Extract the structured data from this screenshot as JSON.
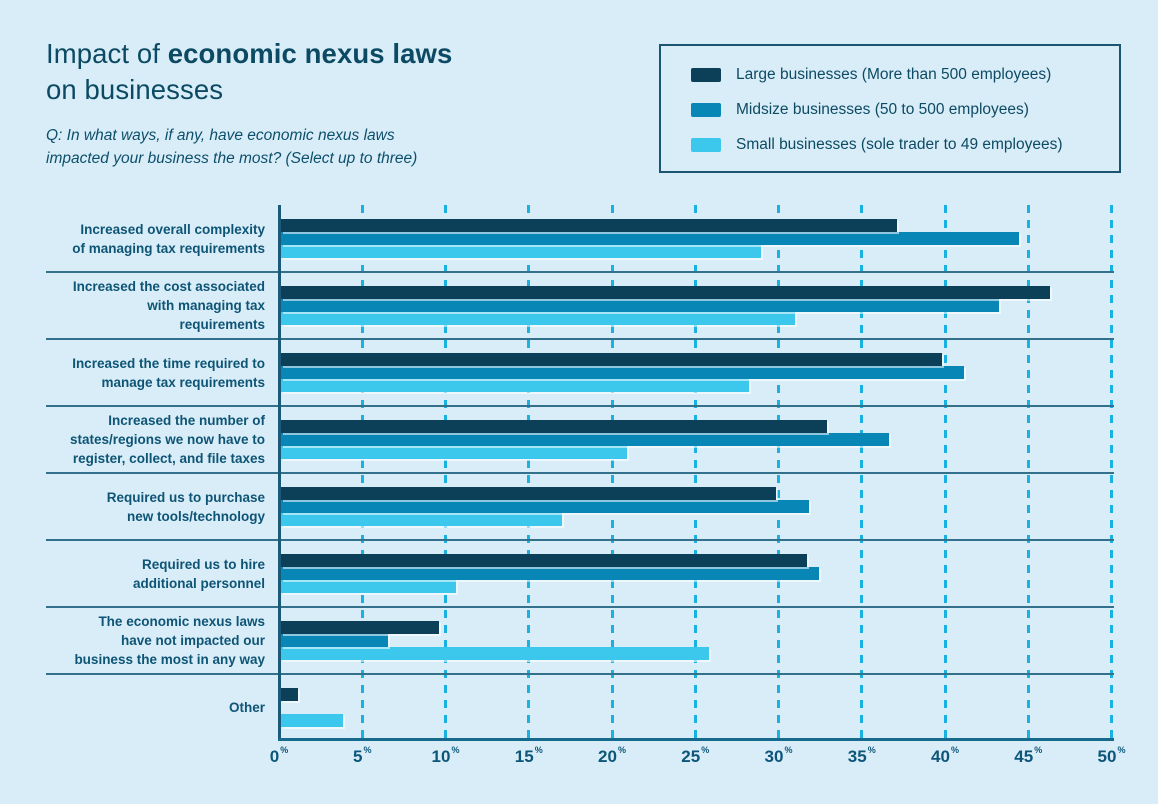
{
  "page": {
    "background": "#d8edf8"
  },
  "header": {
    "title_prefix": "Impact of ",
    "title_bold": "economic nexus laws",
    "title_suffix": " on businesses",
    "subtitle_line1": "Q: In what ways, if any, have economic nexus laws",
    "subtitle_line2": "impacted your business the most? (Select up to three)"
  },
  "legend": {
    "items": [
      {
        "label": "Large businesses (More than 500 employees)",
        "color": "#0c3f58"
      },
      {
        "label": "Midsize businesses (50 to 500 employees)",
        "color": "#0886b6"
      },
      {
        "label": "Small businesses (sole trader to 49 employees)",
        "color": "#3cc8ec"
      }
    ]
  },
  "chart_data": {
    "type": "bar",
    "orientation": "horizontal",
    "title": "Impact of economic nexus laws on businesses",
    "xlabel": "",
    "ylabel": "",
    "xlim": [
      0,
      50
    ],
    "x_tick_step": 5,
    "x_ticks": [
      "0",
      "5",
      "10",
      "15",
      "20",
      "25",
      "30",
      "35",
      "40",
      "45",
      "50"
    ],
    "x_tick_unit": "%",
    "grid": "dashed-vertical",
    "legend_position": "top-right",
    "categories": [
      {
        "label": "Increased overall complexity of managing tax requirements",
        "lines": [
          "Increased overall complexity",
          "of managing tax requirements"
        ]
      },
      {
        "label": "Increased the cost associated with managing tax requirements",
        "lines": [
          "Increased the cost associated",
          "with managing tax",
          "requirements"
        ]
      },
      {
        "label": "Increased the time required to manage tax requirements",
        "lines": [
          "Increased the time required to",
          "manage tax requirements"
        ]
      },
      {
        "label": "Increased the number of states/regions we now have to register, collect, and file taxes",
        "lines": [
          "Increased the number of",
          "states/regions we now have to",
          "register, collect, and file taxes"
        ]
      },
      {
        "label": "Required us to purchase new tools/technology",
        "lines": [
          "Required us to purchase",
          "new tools/technology"
        ]
      },
      {
        "label": "Required us to hire additional personnel",
        "lines": [
          "Required us to hire",
          "additional personnel"
        ]
      },
      {
        "label": "The economic nexus laws have not impacted our business the most in any way",
        "lines": [
          "The economic nexus laws",
          "have not impacted our",
          "business the most in any way"
        ]
      },
      {
        "label": "Other",
        "lines": [
          "Other"
        ]
      }
    ],
    "series": [
      {
        "name": "Large businesses (More than 500 employees)",
        "color": "#0c3f58",
        "values": [
          37.0,
          46.2,
          39.7,
          32.8,
          29.7,
          31.6,
          9.5,
          1.0
        ]
      },
      {
        "name": "Midsize businesses (50 to 500 employees)",
        "color": "#0886b6",
        "values": [
          44.3,
          43.1,
          41.0,
          36.5,
          31.7,
          32.3,
          6.4,
          0.0
        ]
      },
      {
        "name": "Small businesses (sole trader to 49 employees)",
        "color": "#3cc8ec",
        "values": [
          28.8,
          30.9,
          28.1,
          20.8,
          16.9,
          10.5,
          25.7,
          3.7
        ]
      }
    ]
  }
}
